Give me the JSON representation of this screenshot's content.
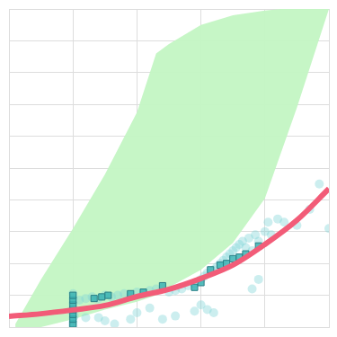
{
  "chart_data": {
    "type": "scatter",
    "xlim": [
      0,
      5
    ],
    "xticks": [
      0,
      1,
      2,
      3,
      4,
      5
    ],
    "ylim": [
      0,
      10
    ],
    "yticks": [
      0,
      1,
      2,
      3,
      4,
      5,
      6,
      7,
      8,
      9,
      10
    ],
    "grid": true,
    "tick_labels": false,
    "series": [
      {
        "type": "band",
        "color": "#c3f5c3",
        "x": [
          0.1,
          0.5,
          1,
          1.5,
          2,
          2.3,
          2.5,
          3,
          3.5,
          4,
          4.5,
          5
        ],
        "lower": [
          0,
          0,
          0.25,
          0.55,
          0.8,
          1.0,
          1.25,
          1.8,
          2.65,
          4.05,
          6.9,
          10.0
        ],
        "upper": [
          0.1,
          1.5,
          3.1,
          4.8,
          6.75,
          8.6,
          8.9,
          9.5,
          9.8,
          9.95,
          10.05,
          10.15
        ]
      },
      {
        "type": "scatter",
        "color": "#80d4d6",
        "marker": "circle",
        "x": [
          1,
          1,
          1,
          1,
          1,
          1,
          1,
          1,
          0.98,
          1.02,
          1.1,
          1.2,
          1.3,
          1.4,
          1.5,
          1.6,
          1.7,
          1.8,
          1.9,
          2.0,
          2.1,
          2.2,
          2.3,
          2.5,
          2.6,
          2.7,
          2.8,
          2.9,
          3.0,
          3.05,
          3.1,
          3.2,
          3.25,
          3.3,
          3.35,
          3.4,
          3.45,
          3.5,
          3.55,
          3.6,
          3.65,
          3.7,
          3.75,
          3.8,
          3.85,
          3.9,
          4.0,
          4.05,
          4.1,
          4.2,
          4.3,
          4.5,
          4.7,
          4.85,
          5.0,
          1.2,
          1.4,
          1.5,
          1.65,
          1.9,
          2.0,
          2.4,
          2.6,
          2.9,
          3.1,
          3.2,
          3.0,
          2.2,
          3.8,
          3.9
        ],
        "values": [
          0.05,
          0.15,
          0.3,
          0.45,
          0.6,
          0.75,
          0.9,
          1.05,
          0.5,
          0.35,
          0.85,
          0.9,
          0.95,
          0.9,
          1.0,
          0.95,
          1.0,
          1.05,
          1.0,
          1.1,
          1.05,
          1.15,
          1.2,
          1.1,
          1.15,
          1.2,
          1.3,
          1.35,
          1.5,
          1.6,
          1.7,
          1.8,
          1.9,
          2.0,
          2.1,
          2.2,
          2.3,
          2.4,
          2.5,
          2.6,
          2.7,
          2.5,
          2.8,
          2.4,
          2.9,
          2.7,
          3.0,
          3.3,
          2.9,
          3.4,
          3.3,
          3.2,
          3.7,
          4.5,
          3.1,
          0.3,
          0.3,
          0.2,
          0.1,
          0.25,
          0.45,
          0.25,
          0.35,
          0.5,
          0.55,
          0.45,
          0.7,
          0.6,
          1.2,
          1.5
        ]
      },
      {
        "type": "scatter",
        "color": "#3bb3b3",
        "marker": "square",
        "x": [
          1.0,
          1.0,
          1.0,
          1.0,
          1.0,
          1.0,
          1.0,
          1.33,
          1.45,
          1.55,
          1.9,
          2.1,
          2.4,
          2.9,
          3.0,
          3.15,
          3.3,
          3.4,
          3.5,
          3.6,
          3.7,
          3.9
        ],
        "values": [
          0.1,
          0.25,
          0.4,
          0.55,
          0.7,
          0.85,
          1.0,
          0.9,
          0.95,
          1.0,
          1.05,
          1.1,
          1.3,
          1.25,
          1.4,
          1.8,
          1.95,
          2.0,
          2.15,
          2.2,
          2.3,
          2.55
        ]
      },
      {
        "type": "line",
        "color": "#f25c78",
        "line_style": "solid",
        "x": [
          0,
          0.5,
          1,
          1.5,
          2,
          2.5,
          3,
          3.5,
          4,
          4.5,
          5
        ],
        "values": [
          0.34,
          0.42,
          0.54,
          0.68,
          0.96,
          1.19,
          1.53,
          1.95,
          2.6,
          3.36,
          4.35
        ]
      }
    ]
  }
}
